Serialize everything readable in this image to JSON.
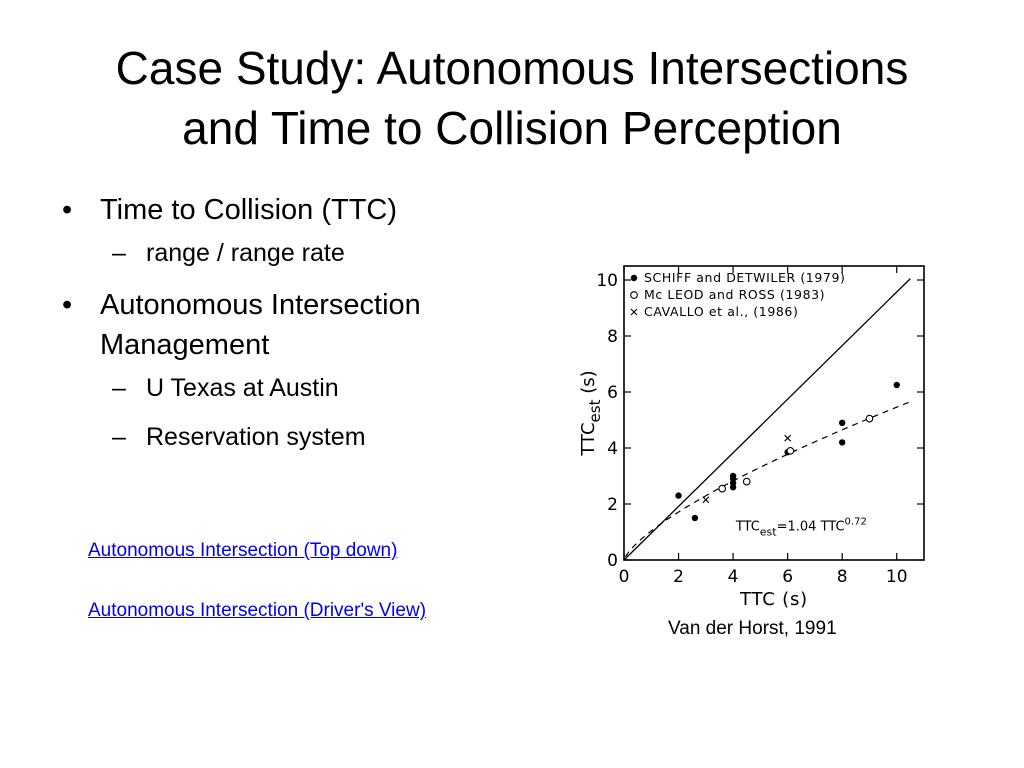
{
  "slide": {
    "title_line1": "Case Study:  Autonomous Intersections",
    "title_line2": "and Time to Collision Perception",
    "bullets": [
      {
        "text": "Time to Collision (TTC)",
        "sub": [
          "range / range rate"
        ]
      },
      {
        "text": "Autonomous Intersection Management",
        "sub": [
          "U Texas at Austin",
          "Reservation system"
        ]
      }
    ],
    "links": [
      "Autonomous Intersection (Top down)",
      "Autonomous Intersection (Driver's View)"
    ],
    "caption": "Van der Horst, 1991",
    "link_color": "#0000ee"
  },
  "chart_data": {
    "type": "scatter",
    "xlabel": "TTC (s)",
    "ylabel_main": "TTC",
    "ylabel_sub": "est",
    "ylabel_unit": "(s)",
    "xlim": [
      0,
      11
    ],
    "ylim": [
      0,
      10.5
    ],
    "x_ticks": [
      0,
      2,
      4,
      6,
      8,
      10
    ],
    "y_ticks": [
      0,
      2,
      4,
      6,
      8,
      10
    ],
    "grid": false,
    "legend_position": "top-left",
    "series": [
      {
        "name": "SCHIFF and DETWILER (1979)",
        "marker": "filled-circle",
        "points": [
          [
            2,
            2.3
          ],
          [
            2.6,
            1.5
          ],
          [
            4,
            2.6
          ],
          [
            4,
            2.75
          ],
          [
            4,
            2.9
          ],
          [
            4,
            3.0
          ],
          [
            6,
            3.85
          ],
          [
            8,
            4.2
          ],
          [
            8,
            4.9
          ],
          [
            10,
            6.25
          ]
        ]
      },
      {
        "name": "Mc LEOD and ROSS (1983)",
        "marker": "open-circle",
        "points": [
          [
            3.6,
            2.55
          ],
          [
            4.5,
            2.8
          ],
          [
            6.1,
            3.9
          ],
          [
            9,
            5.05
          ]
        ]
      },
      {
        "name": "CAVALLO et al., (1986)",
        "marker": "cross",
        "points": [
          [
            3,
            2.15
          ],
          [
            6,
            4.35
          ]
        ]
      }
    ],
    "reference_line": {
      "label": "identity",
      "points": [
        [
          0,
          0
        ],
        [
          10.5,
          10.05
        ]
      ]
    },
    "fit_curve": {
      "label_main": "TTC",
      "label_sub": "est",
      "label_eq": "=1.04 TTC",
      "label_exp": "0.72",
      "coefficient": 1.04,
      "exponent": 0.72
    }
  }
}
